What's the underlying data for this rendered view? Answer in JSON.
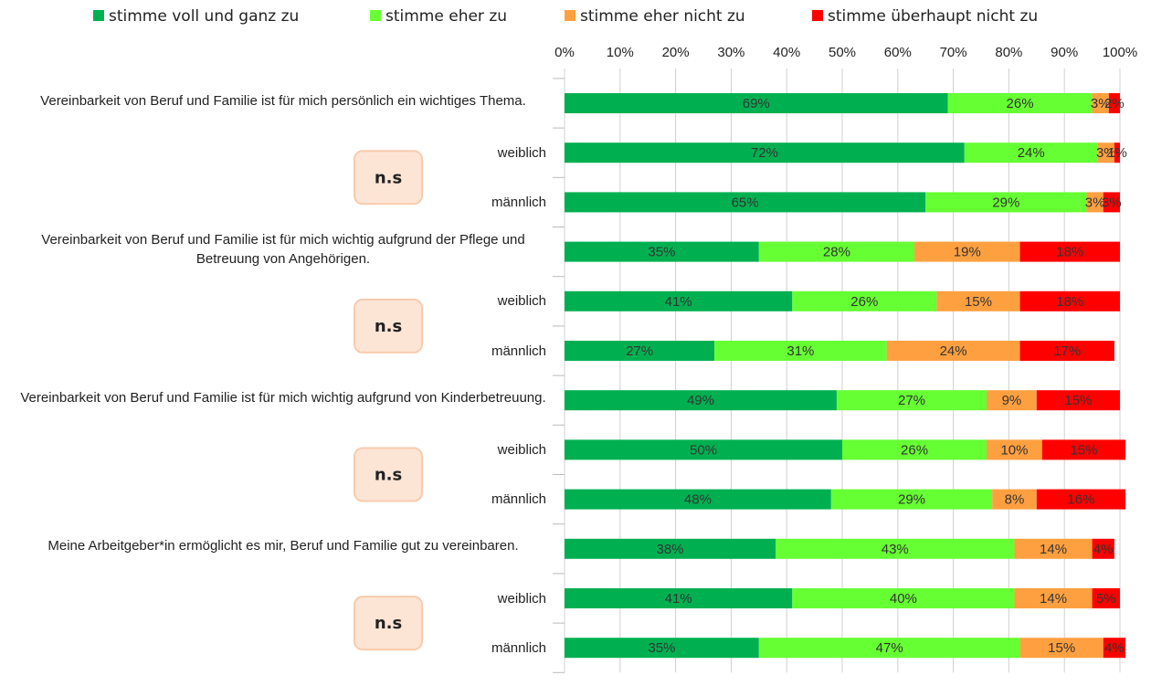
{
  "chart_data": {
    "type": "stacked_barh",
    "categories": [
      "Vereinbarkeit von Beruf und Familie ist für mich persönlich ein wichtiges Thema.",
      "weiblich",
      "männlich",
      "Vereinbarkeit von Beruf und Familie ist für mich wichtig aufgrund der Pflege und Betreuung von Angehörigen.",
      "weiblich",
      "männlich",
      "Vereinbarkeit von Beruf und Familie ist für mich wichtig aufgrund von Kinderbetreuung.",
      "weiblich",
      "männlich",
      "Meine Arbeitgeber*in ermöglicht es mir, Beruf und Familie gut zu vereinbaren.",
      "weiblich",
      "männlich"
    ],
    "series": [
      {
        "name": "stimme voll und ganz zu",
        "color": "#00b050",
        "values": [
          69,
          72,
          65,
          35,
          41,
          27,
          49,
          50,
          48,
          38,
          41,
          35
        ],
        "value_labels": [
          "69%",
          "72%",
          "65%",
          "35%",
          "41%",
          "27%",
          "49%",
          "50%",
          "48%",
          "38%",
          "41%",
          "35%"
        ]
      },
      {
        "name": "stimme eher zu",
        "color": "#66ff33",
        "values": [
          26,
          24,
          29,
          28,
          26,
          31,
          27,
          26,
          29,
          43,
          40,
          47
        ],
        "value_labels": [
          "26%",
          "24%",
          "29%",
          "28%",
          "26%",
          "31%",
          "27%",
          "26%",
          "29%",
          "43%",
          "40%",
          "47%"
        ]
      },
      {
        "name": "stimme eher nicht zu",
        "color": "#ffa040",
        "values": [
          3,
          3,
          3,
          19,
          15,
          24,
          9,
          10,
          8,
          14,
          14,
          15
        ],
        "value_labels": [
          "3%",
          "3%",
          "3%",
          "19%",
          "15%",
          "24%",
          "9%",
          "10%",
          "8%",
          "14%",
          "14%",
          "15%"
        ]
      },
      {
        "name": "stimme überhaupt nicht zu",
        "color": "#ff0000",
        "values": [
          2,
          1,
          3,
          18,
          18,
          17,
          15,
          15,
          16,
          4,
          5,
          4
        ],
        "value_labels": [
          "2%",
          "1%",
          "3%",
          "18%",
          "18%",
          "17%",
          "15%",
          "15%",
          "16%",
          "4%",
          "5%",
          "4%"
        ]
      }
    ],
    "xlim": [
      0,
      100
    ],
    "xticks": [
      {
        "value": 0,
        "label": "0%"
      },
      {
        "value": 10,
        "label": "10%"
      },
      {
        "value": 20,
        "label": "20%"
      },
      {
        "value": 30,
        "label": "30%"
      },
      {
        "value": 40,
        "label": "40%"
      },
      {
        "value": 50,
        "label": "50%"
      },
      {
        "value": 60,
        "label": "60%"
      },
      {
        "value": 70,
        "label": "70%"
      },
      {
        "value": 80,
        "label": "80%"
      },
      {
        "value": 90,
        "label": "90%"
      },
      {
        "value": 100,
        "label": "100%"
      }
    ],
    "grid": true,
    "legend": "top",
    "annotations": [
      "n.s",
      "n.s",
      "n.s",
      "n.s"
    ]
  }
}
